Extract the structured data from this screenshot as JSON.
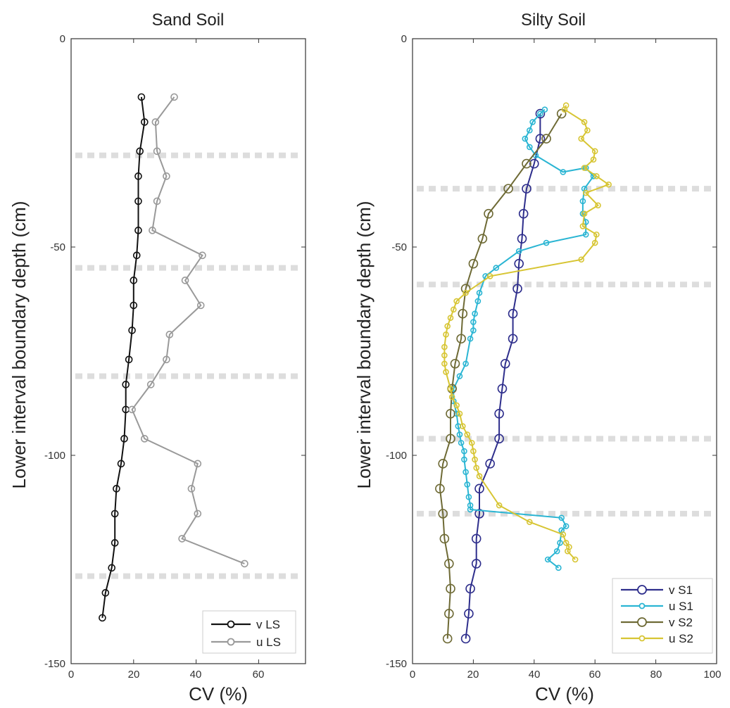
{
  "chart_data": [
    {
      "type": "line",
      "title": "Sand Soil",
      "xlabel": "CV (%)",
      "ylabel": "Lower interval boundary depth (cm)",
      "xlim": [
        0,
        75
      ],
      "ylim": [
        -150,
        0
      ],
      "xticks": [
        "0",
        "20",
        "40",
        "60"
      ],
      "yticks": [
        "0",
        "-50",
        "-100",
        "-150"
      ],
      "grid": false,
      "legend_position": "bottom-right",
      "boundaries": [
        -28,
        -55,
        -81,
        -129
      ],
      "boundary_color": "#dddddd",
      "series": [
        {
          "name": "v LS",
          "color": "#111111",
          "x": [
            22.5,
            23.5,
            22.0,
            21.5,
            21.5,
            21.5,
            21.0,
            20.0,
            20.0,
            19.5,
            18.5,
            17.5,
            17.5,
            17.0,
            16.0,
            14.5,
            14.0,
            14.0,
            13.0,
            11.0,
            10.0
          ],
          "y": [
            -14,
            -20,
            -27,
            -33,
            -39,
            -46,
            -52,
            -58,
            -64,
            -70,
            -77,
            -83,
            -89,
            -96,
            -102,
            -108,
            -114,
            -121,
            -127,
            -133,
            -139
          ]
        },
        {
          "name": "u LS",
          "color": "#999999",
          "x": [
            33.0,
            27.0,
            27.5,
            30.5,
            27.5,
            26.0,
            42.0,
            36.5,
            41.5,
            31.5,
            30.5,
            25.5,
            19.5,
            23.5,
            40.5,
            38.5,
            40.5,
            35.5,
            55.5
          ],
          "y": [
            -14,
            -20,
            -27,
            -33,
            -39,
            -46,
            -52,
            -58,
            -64,
            -71,
            -77,
            -83,
            -89,
            -96,
            -102,
            -108,
            -114,
            -120,
            -126
          ]
        }
      ]
    },
    {
      "type": "line",
      "title": "Silty Soil",
      "xlabel": "CV (%)",
      "ylabel": "Lower interval boundary depth (cm)",
      "xlim": [
        0,
        100
      ],
      "ylim": [
        -150,
        0
      ],
      "xticks": [
        "0",
        "20",
        "40",
        "60",
        "80",
        "100"
      ],
      "yticks": [
        "0",
        "-50",
        "-100",
        "-150"
      ],
      "grid": false,
      "legend_position": "bottom-right",
      "boundaries": [
        -36,
        -59,
        -96,
        -114
      ],
      "boundary_color": "#dddddd",
      "series": [
        {
          "name": "v S1",
          "color": "#2e2e8c",
          "marker_size": 6,
          "x": [
            42.0,
            42.0,
            40.0,
            37.5,
            36.5,
            36.0,
            35.0,
            34.5,
            33.0,
            33.0,
            30.5,
            29.5,
            28.5,
            28.5,
            25.5,
            22.0,
            22.0,
            21.0,
            21.0,
            19.0,
            18.5,
            17.5
          ],
          "y": [
            -18,
            -24,
            -30,
            -36,
            -42,
            -48,
            -54,
            -60,
            -66,
            -72,
            -78,
            -84,
            -90,
            -96,
            -102,
            -108,
            -114,
            -120,
            -126,
            -132,
            -138,
            -144
          ]
        },
        {
          "name": "u S1",
          "color": "#2ab5d3",
          "marker_size": 3.5,
          "x": [
            43.5,
            42.0,
            39.5,
            38.5,
            37.0,
            38.5,
            40.5,
            49.5,
            57.0,
            59.5,
            56.5,
            56.0,
            56.0,
            57.0,
            57.0,
            44.0,
            35.0,
            27.5,
            24.0,
            22.0,
            21.5,
            20.5,
            20.0,
            20.0,
            19.0,
            17.5,
            15.5,
            13.5,
            13.5,
            14.5,
            15.0,
            15.5,
            16.0,
            17.0,
            17.0,
            17.5,
            18.0,
            18.5,
            19.0,
            19.0,
            49.0,
            50.5,
            49.0,
            48.5,
            47.5,
            44.5,
            48.0
          ],
          "y": [
            -17,
            -18,
            -20,
            -22,
            -24,
            -26,
            -28,
            -32,
            -31,
            -33,
            -36,
            -39,
            -42,
            -44,
            -47,
            -49,
            -51,
            -55,
            -57,
            -61,
            -63,
            -66,
            -68,
            -70,
            -72,
            -78,
            -81,
            -84,
            -87,
            -90,
            -93,
            -95,
            -97,
            -99,
            -101,
            -104,
            -107,
            -110,
            -112,
            -113,
            -115,
            -117,
            -118,
            -121,
            -123,
            -125,
            -127
          ]
        },
        {
          "name": "v S2",
          "color": "#6e6a35",
          "marker_size": 6,
          "x": [
            49.0,
            44.0,
            37.5,
            31.5,
            25.0,
            23.0,
            20.0,
            17.5,
            16.5,
            16.0,
            14.0,
            13.0,
            12.5,
            12.5,
            10.0,
            9.0,
            10.0,
            10.5,
            12.0,
            12.5,
            12.0,
            11.5
          ],
          "y": [
            -18,
            -24,
            -30,
            -36,
            -42,
            -48,
            -54,
            -60,
            -66,
            -72,
            -78,
            -84,
            -90,
            -96,
            -102,
            -108,
            -114,
            -120,
            -126,
            -132,
            -138,
            -144
          ]
        },
        {
          "name": "u S2",
          "color": "#d7c533",
          "marker_size": 3.5,
          "x": [
            50.5,
            50.0,
            56.5,
            57.5,
            55.5,
            60.0,
            59.5,
            56.5,
            60.5,
            64.5,
            57.0,
            61.0,
            56.5,
            56.0,
            60.5,
            60.0,
            55.5,
            25.5,
            17.5,
            14.5,
            13.5,
            12.5,
            11.5,
            11.0,
            10.5,
            10.5,
            10.5,
            11.0,
            12.5,
            13.0,
            14.5,
            15.5,
            16.5,
            18.0,
            19.5,
            20.0,
            20.5,
            21.0,
            22.0,
            28.5,
            38.5,
            49.5,
            50.5,
            51.5,
            51.0,
            53.5
          ],
          "y": [
            -16,
            -17,
            -20,
            -22,
            -24,
            -27,
            -29,
            -31,
            -33,
            -35,
            -37,
            -40,
            -42,
            -45,
            -47,
            -49,
            -53,
            -57,
            -61,
            -63,
            -65,
            -67,
            -69,
            -71,
            -74,
            -76,
            -78,
            -80,
            -84,
            -86,
            -88,
            -90,
            -93,
            -95,
            -97,
            -99,
            -101,
            -103,
            -105,
            -112,
            -116,
            -119,
            -121,
            -122,
            -123,
            -125
          ]
        }
      ]
    }
  ]
}
